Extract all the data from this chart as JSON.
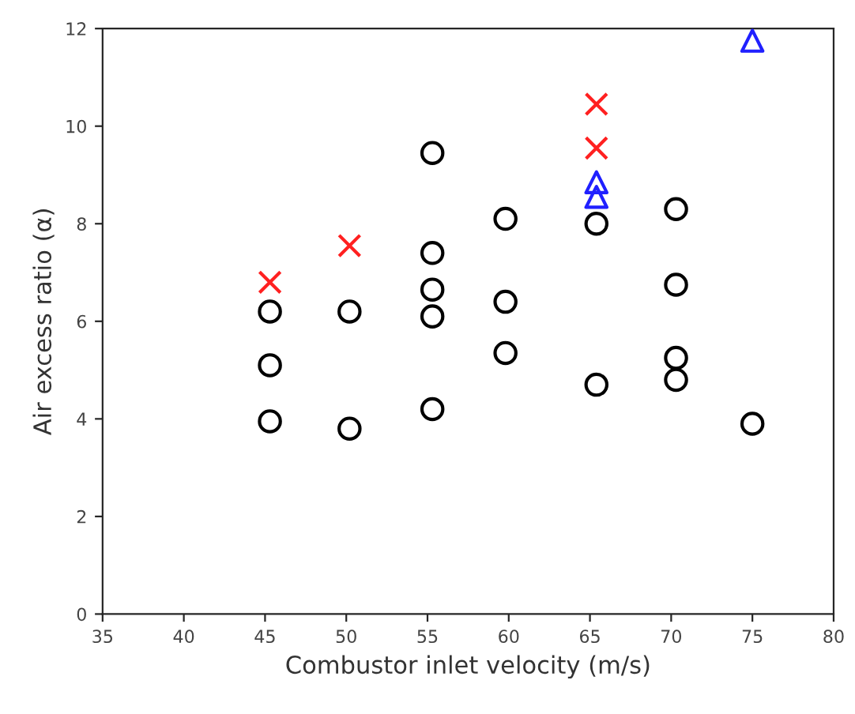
{
  "chart_data": {
    "type": "scatter",
    "xlabel": "Combustor inlet velocity (m/s)",
    "ylabel": "Air excess ratio (α)",
    "xlim": [
      35,
      80
    ],
    "xticks": [
      35,
      40,
      45,
      50,
      55,
      60,
      65,
      70,
      75,
      80
    ],
    "ylim": [
      0,
      12
    ],
    "yticks": [
      0,
      2,
      4,
      6,
      8,
      10,
      12
    ],
    "grid": false,
    "legend": false,
    "series": [
      {
        "color": "#000000",
        "marker": "circle",
        "x": [
          45.3,
          45.3,
          45.3,
          50.2,
          50.2,
          55.3,
          55.3,
          55.3,
          55.3,
          55.3,
          59.8,
          59.8,
          59.8,
          65.4,
          65.4,
          70.3,
          70.3,
          70.3,
          70.3,
          75.0
        ],
        "values": [
          6.2,
          5.1,
          3.95,
          6.2,
          3.8,
          9.45,
          7.4,
          6.65,
          6.1,
          4.2,
          8.1,
          6.4,
          5.35,
          8.0,
          4.7,
          8.3,
          6.75,
          5.25,
          4.8,
          3.9
        ]
      },
      {
        "color": "#ff2020",
        "marker": "cross",
        "x": [
          45.3,
          50.2,
          65.4,
          65.4
        ],
        "values": [
          6.8,
          7.55,
          9.55,
          10.45
        ]
      },
      {
        "color": "#2020ff",
        "marker": "triangle",
        "x": [
          65.4,
          65.4,
          75.0
        ],
        "values": [
          8.85,
          8.55,
          11.75
        ]
      }
    ]
  }
}
